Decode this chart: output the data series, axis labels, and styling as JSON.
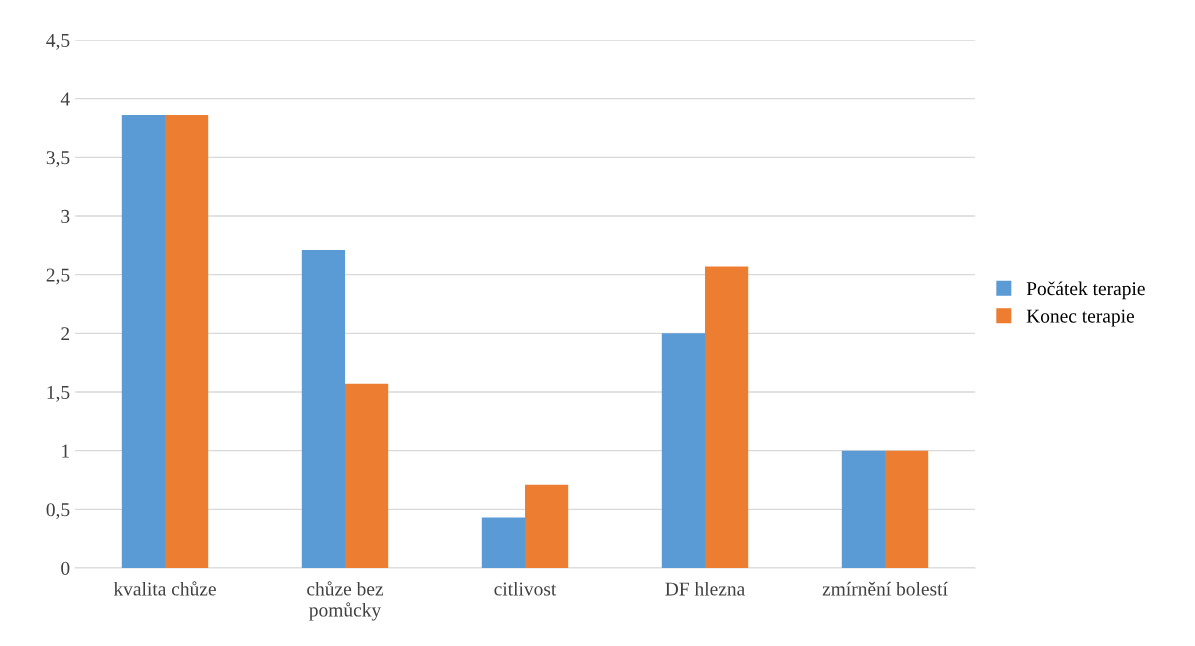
{
  "chart_data": {
    "type": "bar",
    "categories": [
      "kvalita chůze",
      "chůze bez\npomůcky",
      "citlivost",
      "DF hlezna",
      "zmírnění bolestí"
    ],
    "series": [
      {
        "name": "Počátek terapie",
        "color": "#5b9bd5",
        "values": [
          3.86,
          2.71,
          0.43,
          2,
          1
        ]
      },
      {
        "name": "Konec terapie",
        "color": "#ed7d31",
        "values": [
          3.86,
          1.57,
          0.71,
          2.57,
          1
        ]
      }
    ],
    "ylim": [
      0,
      4.5
    ],
    "yticks": [
      0,
      {
        "value": 0.5,
        "label": "0,5"
      },
      1,
      {
        "value": 1.5,
        "label": "1,5"
      },
      2,
      {
        "value": 2.5,
        "label": "2,5"
      },
      3,
      {
        "value": 3.5,
        "label": "3,5"
      },
      4,
      {
        "value": 4.5,
        "label": "4,5"
      }
    ],
    "grid": "y",
    "legend": "right"
  }
}
